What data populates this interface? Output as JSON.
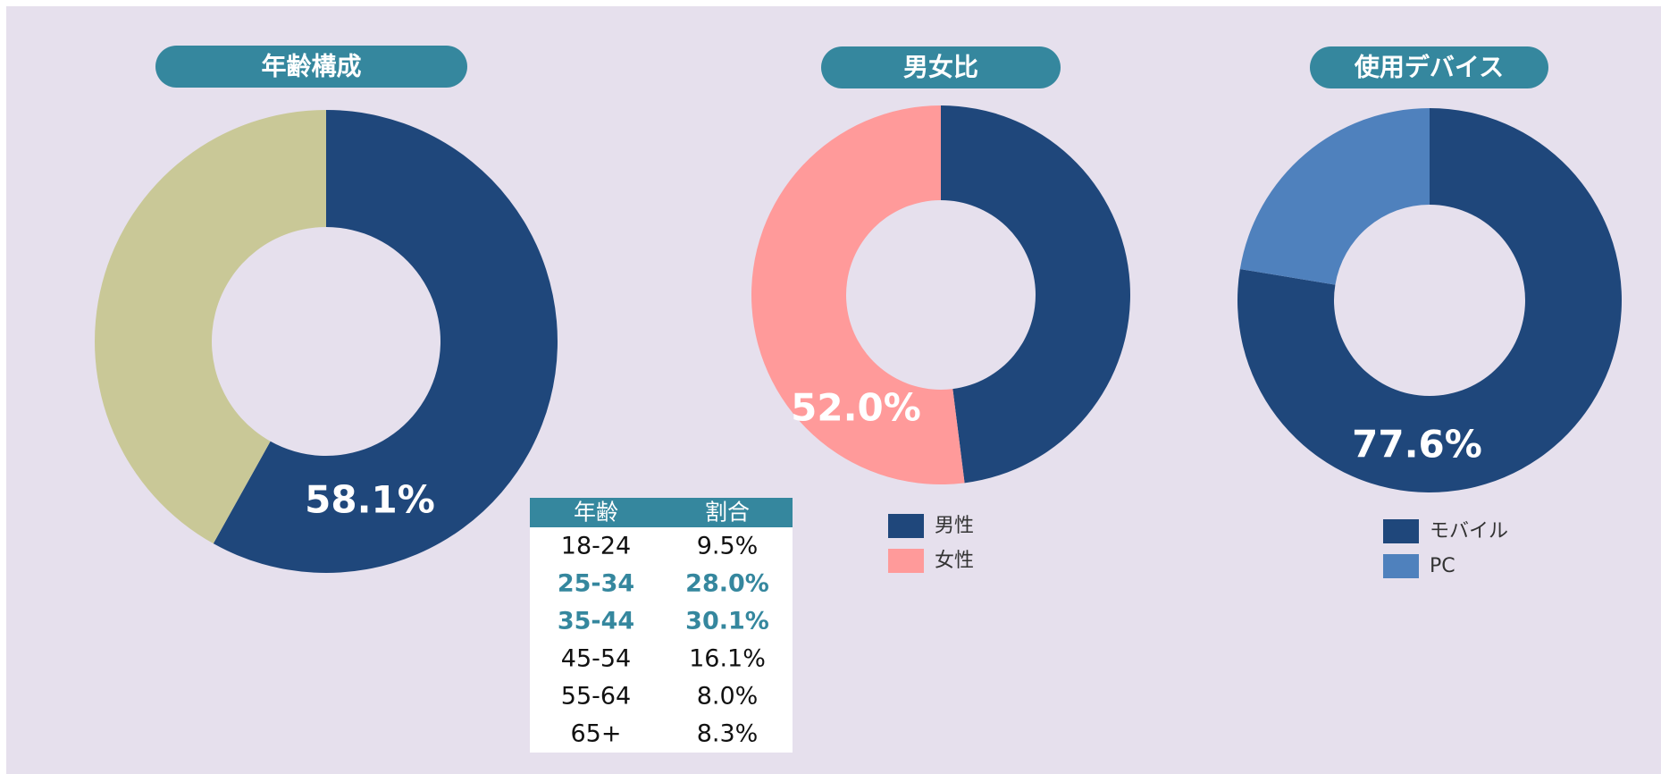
{
  "chart_data": [
    {
      "type": "donut",
      "title": "年齢構成",
      "values": [
        58.1,
        41.9
      ],
      "value_labels": [
        "58.1%",
        null
      ],
      "colors": [
        "#1f477b",
        "#c9c897"
      ]
    },
    {
      "type": "donut",
      "title": "男女比",
      "categories": [
        "男性",
        "女性"
      ],
      "values": [
        48.0,
        52.0
      ],
      "value_labels": [
        null,
        "52.0%"
      ],
      "colors": [
        "#1f477b",
        "#ff9a9a"
      ],
      "legend": "bottom"
    },
    {
      "type": "donut",
      "title": "使用デバイス",
      "categories": [
        "モバイル",
        "PC"
      ],
      "values": [
        77.6,
        22.4
      ],
      "value_labels": [
        "77.6%",
        null
      ],
      "colors": [
        "#1f477b",
        "#4f81bd"
      ],
      "legend": "bottom"
    }
  ],
  "table": {
    "header": [
      "年齢",
      "割合"
    ],
    "rows": [
      [
        "18-24",
        "9.5%"
      ],
      [
        "25-34",
        "28.0%"
      ],
      [
        "35-44",
        "30.1%"
      ],
      [
        "45-54",
        "16.1%"
      ],
      [
        "55-64",
        "8.0%"
      ],
      [
        "65+",
        "8.3%"
      ]
    ]
  }
}
